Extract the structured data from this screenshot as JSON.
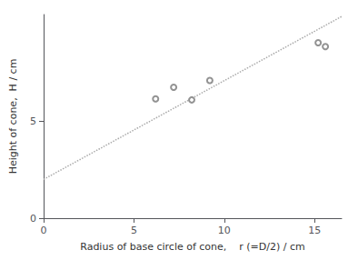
{
  "chart_data": {
    "type": "scatter",
    "xlabel": "Radius of base circle of cone,    r (=D/2) / cm",
    "ylabel": "Height of cone,  H / cm",
    "series": [
      {
        "type": "line",
        "x": [
          0,
          16.5
        ],
        "values": [
          2.0,
          10.4
        ],
        "color": "#aaaaaa",
        "line_style": "dotted"
      },
      {
        "type": "scatter",
        "x": [
          6.2,
          7.2,
          8.2,
          9.2,
          15.2,
          15.6
        ],
        "values": [
          6.15,
          6.75,
          6.1,
          7.1,
          9.05,
          8.85
        ],
        "color": "#777777",
        "marker": "open circle"
      }
    ],
    "xlim": [
      0,
      16.5
    ],
    "ylim": [
      0,
      10.5
    ],
    "xticks": [
      0,
      5,
      10,
      15
    ],
    "yticks": [
      0,
      5
    ],
    "grid": false
  }
}
